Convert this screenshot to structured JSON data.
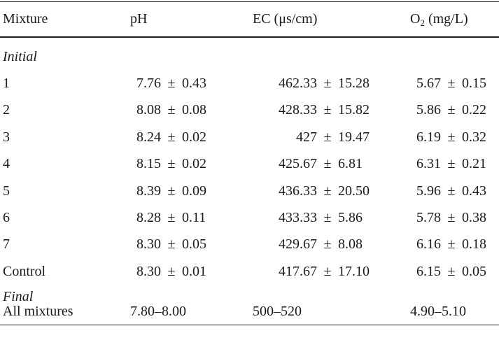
{
  "table": {
    "headers": {
      "mixture": "Mixture",
      "ph": "pH",
      "ec": "EC (μs/cm)",
      "o2_main": "O",
      "o2_sub": "2",
      "o2_unit": " (mg/L)"
    },
    "sections": {
      "initial": "Initial",
      "final": "Final"
    },
    "pm_symbol": "±",
    "rows": [
      {
        "mixture": "1",
        "ph": [
          "7.76",
          "0.43"
        ],
        "ec": [
          "462.33",
          "15.28"
        ],
        "o2": [
          "5.67",
          "0.15"
        ]
      },
      {
        "mixture": "2",
        "ph": [
          "8.08",
          "0.08"
        ],
        "ec": [
          "428.33",
          "15.82"
        ],
        "o2": [
          "5.86",
          "0.22"
        ]
      },
      {
        "mixture": "3",
        "ph": [
          "8.24",
          "0.02"
        ],
        "ec": [
          "427",
          "19.47"
        ],
        "o2": [
          "6.19",
          "0.32"
        ]
      },
      {
        "mixture": "4",
        "ph": [
          "8.15",
          "0.02"
        ],
        "ec": [
          "425.67",
          "6.81"
        ],
        "o2": [
          "6.31",
          "0.21"
        ]
      },
      {
        "mixture": "5",
        "ph": [
          "8.39",
          "0.09"
        ],
        "ec": [
          "436.33",
          "20.50"
        ],
        "o2": [
          "5.96",
          "0.43"
        ]
      },
      {
        "mixture": "6",
        "ph": [
          "8.28",
          "0.11"
        ],
        "ec": [
          "433.33",
          "5.86"
        ],
        "o2": [
          "5.78",
          "0.38"
        ]
      },
      {
        "mixture": "7",
        "ph": [
          "8.30",
          "0.05"
        ],
        "ec": [
          "429.67",
          "8.08"
        ],
        "o2": [
          "6.16",
          "0.18"
        ]
      },
      {
        "mixture": "Control",
        "ph": [
          "8.30",
          "0.01"
        ],
        "ec": [
          "417.67",
          "17.10"
        ],
        "o2": [
          "6.15",
          "0.05"
        ]
      }
    ],
    "final_row": {
      "mixture": "All mixtures",
      "ph": "7.80–8.00",
      "ec": "500–520",
      "o2": "4.90–5.10"
    }
  }
}
